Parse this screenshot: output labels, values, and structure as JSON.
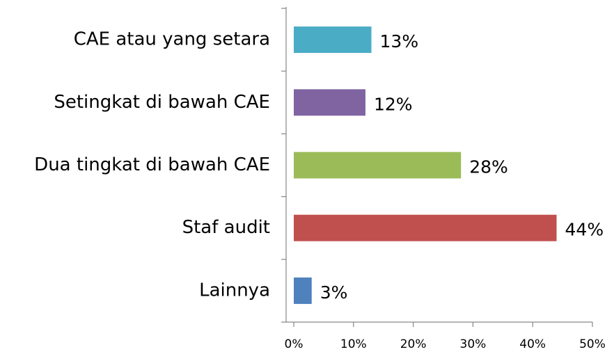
{
  "chart_data": {
    "type": "barh",
    "categories": [
      "CAE atau yang setara",
      "Setingkat di bawah CAE",
      "Dua tingkat di bawah CAE",
      "Staf audit",
      "Lainnya"
    ],
    "values": [
      13,
      12,
      28,
      44,
      3
    ],
    "value_labels": [
      "13%",
      "12%",
      "28%",
      "44%",
      "3%"
    ],
    "colors": [
      "#4bacc6",
      "#8064a2",
      "#9bbb59",
      "#c0504d",
      "#4f81bd"
    ],
    "xlim": [
      0,
      50
    ],
    "xticks": [
      {
        "value": 0,
        "label": "0%"
      },
      {
        "value": 10,
        "label": "10%"
      },
      {
        "value": 20,
        "label": "20%"
      },
      {
        "value": 30,
        "label": "30%"
      },
      {
        "value": 40,
        "label": "40%"
      },
      {
        "value": 50,
        "label": "50%"
      }
    ]
  }
}
